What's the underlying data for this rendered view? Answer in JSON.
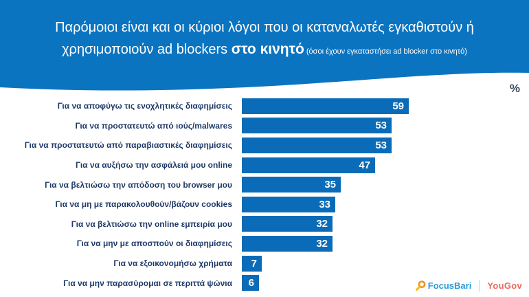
{
  "header": {
    "title_line1": "Παρόμοιοι είναι και οι κύριοι λόγοι που οι καταναλωτές εγκαθιστούν ή",
    "title_line2_prefix": "χρησιμοποιούν ad blockers ",
    "title_line2_bold": "στο κινητό",
    "title_line2_note": " (όσοι έχουν εγκαταστήσει ad blocker στο κινητό)"
  },
  "unit_label": "%",
  "chart_data": {
    "type": "bar",
    "orientation": "horizontal",
    "unit": "%",
    "title": "Λόγοι που οι καταναλωτές εγκαθιστούν ή χρησιμοποιούν ad blockers στο κινητό",
    "categories": [
      "Για να αποφύγω τις ενοχλητικές διαφημίσεις",
      "Για να προστατευτώ από ιούς/malwares",
      "Για να προστατευτώ από παραβιαστικές διαφημίσεις",
      "Για να αυξήσω την ασφάλειά μου online",
      "Για να βελτιώσω την απόδοση του browser μου",
      "Για να μη με παρακολουθούν/βάζουν cookies",
      "Για να βελτιώσω την online εμπειρία μου",
      "Για να μην με αποσπούν οι διαφημίσεις",
      "Για να εξοικονομήσω χρήματα",
      "Για να μην παρασύρομαι σε περιττά ψώνια"
    ],
    "values": [
      59,
      53,
      53,
      47,
      35,
      33,
      32,
      32,
      7,
      6
    ],
    "value_labels_shown": true,
    "axis_shown": false,
    "grid": false,
    "legend": "none",
    "xlim": [
      0,
      65
    ],
    "bar_color": "#0a6cb8"
  },
  "footer": {
    "focusbari_label": "FocusBari",
    "yougov_label": "YouGov"
  },
  "colors": {
    "header_background": "#0b74c0",
    "bar_blue": "#0a6cb8",
    "label_navy": "#1f3a68",
    "percent_symbol": "#3d4a5d",
    "focusbari_blue": "#2b9cd8",
    "yougov_red": "#ea6a5f",
    "focusbari_icon_orange": "#f0931f",
    "focusbari_icon_yellow": "#fdb913"
  }
}
